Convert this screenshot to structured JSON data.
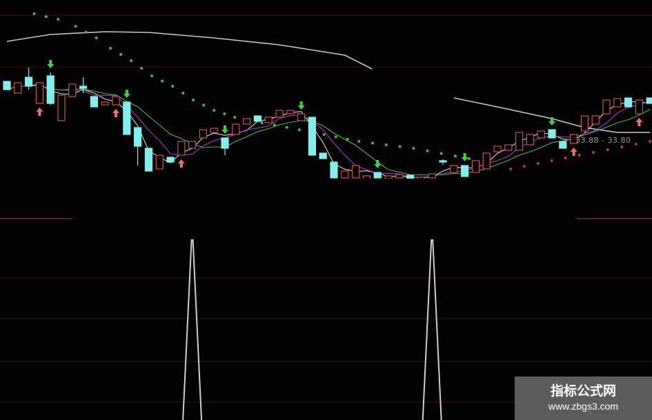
{
  "chart_data": {
    "type": "candlestick",
    "price_readout": "33.88 - 33.80",
    "colors": {
      "up": "#d2504e",
      "down": "#7ff0ee",
      "ma_short": "#e8d8b8",
      "ma_mid": "#b030d0",
      "ma_slow": "#40c040",
      "ma_long": "#c8c8c8",
      "dots_green": "#38c038",
      "dots_red": "#c03838",
      "arrow_buy": "#f07070",
      "arrow_sell": "#40d040",
      "grid": "#3a1010",
      "indicator": "#d0d0d0"
    },
    "candles_ohlc": [
      [
        35.62,
        35.62,
        35.38,
        35.38
      ],
      [
        35.28,
        35.58,
        35.28,
        35.58
      ],
      [
        35.74,
        36.02,
        35.38,
        35.48
      ],
      [
        34.98,
        35.58,
        34.98,
        35.58
      ],
      [
        35.78,
        35.88,
        34.94,
        34.98
      ],
      [
        34.48,
        35.22,
        34.48,
        35.22
      ],
      [
        35.18,
        35.54,
        35.18,
        35.54
      ],
      [
        35.48,
        35.74,
        35.28,
        35.42
      ],
      [
        35.18,
        35.18,
        34.88,
        34.88
      ],
      [
        34.94,
        35.02,
        34.94,
        35.02
      ],
      [
        34.94,
        35.18,
        34.94,
        35.18
      ],
      [
        35.02,
        35.02,
        34.08,
        34.08
      ],
      [
        34.28,
        34.28,
        33.18,
        33.74
      ],
      [
        33.68,
        33.68,
        33.02,
        33.02
      ],
      [
        33.08,
        33.48,
        33.08,
        33.48
      ],
      [
        33.42,
        33.42,
        33.28,
        33.28
      ],
      [
        33.48,
        33.88,
        33.48,
        33.88
      ],
      [
        33.68,
        33.88,
        33.68,
        33.88
      ],
      [
        33.98,
        34.22,
        33.98,
        34.22
      ],
      [
        34.14,
        34.26,
        34.14,
        34.26
      ],
      [
        33.98,
        33.98,
        33.48,
        33.68
      ],
      [
        34.08,
        34.38,
        34.08,
        34.38
      ],
      [
        34.38,
        34.54,
        34.38,
        34.54
      ],
      [
        34.62,
        34.62,
        34.46,
        34.46
      ],
      [
        34.42,
        34.58,
        34.42,
        34.58
      ],
      [
        34.58,
        34.78,
        34.58,
        34.78
      ],
      [
        34.68,
        34.78,
        34.68,
        34.78
      ],
      [
        34.48,
        34.68,
        34.48,
        34.68
      ],
      [
        34.58,
        34.58,
        33.48,
        33.48
      ],
      [
        33.54,
        33.54,
        33.38,
        33.38
      ],
      [
        33.28,
        33.28,
        32.82,
        32.82
      ],
      [
        32.82,
        33.02,
        32.82,
        33.02
      ],
      [
        32.82,
        33.18,
        32.82,
        33.18
      ],
      [
        32.72,
        32.9,
        32.7,
        32.88
      ],
      [
        32.98,
        32.98,
        32.82,
        32.82
      ],
      [
        32.8,
        32.9,
        32.7,
        32.88
      ],
      [
        32.82,
        32.92,
        32.82,
        32.92
      ],
      [
        32.9,
        32.92,
        32.7,
        32.74
      ],
      [
        32.7,
        32.86,
        32.66,
        32.84
      ],
      [
        32.82,
        32.94,
        32.82,
        32.94
      ],
      [
        33.32,
        33.36,
        33.2,
        33.28
      ],
      [
        32.98,
        33.18,
        32.98,
        33.18
      ],
      [
        33.18,
        33.18,
        32.86,
        32.86
      ],
      [
        32.98,
        33.32,
        32.98,
        33.32
      ],
      [
        33.08,
        33.54,
        33.08,
        33.54
      ],
      [
        33.58,
        33.74,
        33.58,
        33.74
      ],
      [
        33.62,
        33.78,
        33.62,
        33.78
      ],
      [
        33.62,
        34.14,
        33.62,
        34.14
      ],
      [
        33.78,
        34.08,
        33.78,
        34.08
      ],
      [
        33.98,
        34.18,
        33.98,
        34.18
      ],
      [
        34.22,
        34.22,
        33.98,
        33.98
      ],
      [
        33.88,
        33.88,
        33.68,
        33.68
      ],
      [
        33.82,
        34.08,
        33.82,
        34.08
      ],
      [
        34.18,
        34.62,
        34.18,
        34.62
      ],
      [
        34.38,
        34.62,
        34.38,
        34.62
      ],
      [
        34.68,
        35.08,
        34.68,
        35.08
      ],
      [
        34.88,
        35.12,
        34.88,
        35.12
      ],
      [
        35.14,
        35.14,
        34.88,
        34.88
      ],
      [
        34.68,
        35.08,
        34.68,
        35.08
      ],
      [
        35.14,
        35.14,
        34.98,
        34.98
      ]
    ],
    "ma_long_segments": [
      [
        [
          0,
          36.78
        ],
        [
          4,
          36.98
        ],
        [
          9,
          37.06
        ],
        [
          13,
          37.04
        ],
        [
          19,
          36.88
        ],
        [
          25,
          36.68
        ],
        [
          31,
          36.38
        ],
        [
          33.5,
          35.98
        ]
      ],
      [
        [
          41,
          35.14
        ],
        [
          45,
          34.88
        ],
        [
          50,
          34.54
        ],
        [
          53,
          34.28
        ],
        [
          56,
          34.14
        ],
        [
          59,
          34.14
        ]
      ]
    ],
    "dots_green": [
      [
        2.5,
        37.58
      ],
      [
        4.7,
        37.42
      ],
      [
        6.3,
        37.22
      ],
      [
        8.2,
        36.88
      ],
      [
        9.5,
        36.58
      ],
      [
        11.4,
        36.22
      ],
      [
        13.3,
        35.78
      ],
      [
        15.2,
        35.48
      ],
      [
        17.1,
        35.08
      ],
      [
        19,
        34.78
      ],
      [
        20.9,
        34.58
      ],
      [
        23.4,
        34.42
      ],
      [
        29.1,
        34.08
      ],
      [
        32.3,
        33.88
      ],
      [
        37.3,
        33.68
      ],
      [
        42.4,
        33.38
      ]
    ],
    "dots_red": [
      [
        46.2,
        33.08
      ],
      [
        52.5,
        33.48
      ],
      [
        59,
        33.88
      ]
    ],
    "sell_signals": [
      4,
      11,
      20,
      27,
      34,
      42,
      50
    ],
    "buy_signals": [
      3,
      10,
      16,
      52,
      58
    ],
    "indicator_spikes": [
      17,
      39
    ],
    "ylim": [
      32.8,
      37.98
    ]
  },
  "watermark": {
    "title": "指标公式网",
    "url": "www.zbgs3.com"
  }
}
